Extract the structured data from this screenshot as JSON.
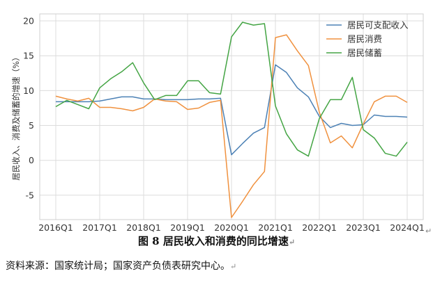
{
  "chart_data": {
    "type": "line",
    "ylabel": "居民收入、消费及储蓄的增速（%）",
    "ylim": [
      -8.5,
      21
    ],
    "yticks": [
      -5,
      0,
      5,
      10,
      15,
      20
    ],
    "grid": true,
    "legend_position": "top-right",
    "x": [
      "2016Q1",
      "2016Q2",
      "2016Q3",
      "2016Q4",
      "2017Q1",
      "2017Q2",
      "2017Q3",
      "2017Q4",
      "2018Q1",
      "2018Q2",
      "2018Q3",
      "2018Q4",
      "2019Q1",
      "2019Q2",
      "2019Q3",
      "2019Q4",
      "2020Q1",
      "2020Q2",
      "2020Q3",
      "2020Q4",
      "2021Q1",
      "2021Q2",
      "2021Q3",
      "2021Q4",
      "2022Q1",
      "2022Q2",
      "2022Q3",
      "2022Q4",
      "2023Q1",
      "2023Q2",
      "2023Q3",
      "2023Q4",
      "2024Q1"
    ],
    "xtick_labels": [
      "2016Q1",
      "2017Q1",
      "2018Q1",
      "2019Q1",
      "2020Q1",
      "2021Q1",
      "2022Q1",
      "2023Q1",
      "2024Q1"
    ],
    "series": [
      {
        "name": "居民可支配收入",
        "color": "#4c81b5",
        "values": [
          8.4,
          8.4,
          8.4,
          8.4,
          8.5,
          8.8,
          9.1,
          9.1,
          8.8,
          8.8,
          8.7,
          8.7,
          8.7,
          8.8,
          8.8,
          8.9,
          0.8,
          2.4,
          3.9,
          4.7,
          13.7,
          12.6,
          10.4,
          9.1,
          6.3,
          4.7,
          5.3,
          5.0,
          5.1,
          6.5,
          6.3,
          6.3,
          6.2
        ]
      },
      {
        "name": "居民消费",
        "color": "#f0913e",
        "values": [
          9.2,
          8.8,
          8.5,
          8.9,
          7.6,
          7.6,
          7.4,
          7.1,
          7.6,
          8.8,
          8.5,
          8.4,
          7.3,
          7.5,
          8.3,
          8.6,
          -8.2,
          -5.9,
          -3.5,
          -1.6,
          17.6,
          18.0,
          15.7,
          13.6,
          6.9,
          2.5,
          3.5,
          1.8,
          5.2,
          8.4,
          9.2,
          9.2,
          8.3
        ]
      },
      {
        "name": "居民储蓄",
        "color": "#43a443",
        "values": [
          7.7,
          8.6,
          8.0,
          7.4,
          10.4,
          11.7,
          12.7,
          14.0,
          11.1,
          8.7,
          9.3,
          9.3,
          11.4,
          11.4,
          9.7,
          9.5,
          17.7,
          19.8,
          19.4,
          19.6,
          7.8,
          3.8,
          1.5,
          0.6,
          6.0,
          8.7,
          8.7,
          11.9,
          4.4,
          3.2,
          1.0,
          0.6,
          2.6
        ]
      }
    ]
  },
  "caption": "图 8 居民收入和消费的同比增速",
  "source": "资料来源：国家统计局；国家资产负债表研究中心。",
  "paragraph_mark": "↵"
}
